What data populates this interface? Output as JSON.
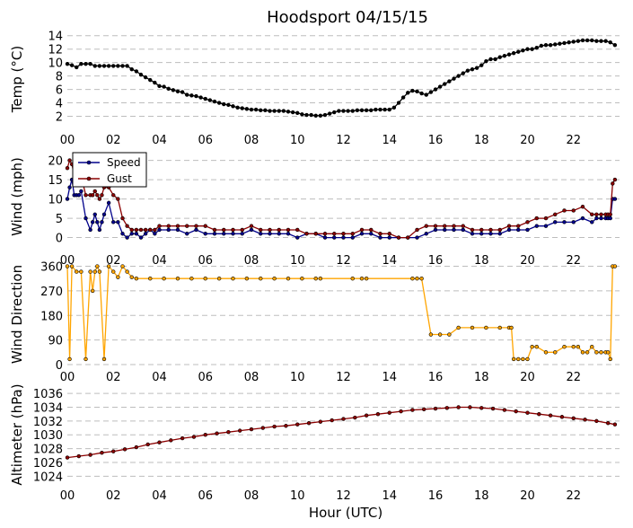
{
  "chart_data": [
    {
      "type": "line",
      "panel": "temp",
      "title": "Hoodsport 04/15/15",
      "ylabel": "Temp (°C)",
      "ylim": [
        1,
        14.5
      ],
      "yticks": [
        "2",
        "4",
        "6",
        "8",
        "10",
        "12",
        "14"
      ],
      "xticks": [
        "00",
        "02",
        "04",
        "06",
        "08",
        "10",
        "12",
        "14",
        "16",
        "18",
        "20",
        "22"
      ],
      "grid": true,
      "series": [
        {
          "color": "#000000",
          "x": [
            0,
            0.2,
            0.4,
            0.6,
            0.8,
            1,
            1.2,
            1.4,
            1.6,
            1.8,
            2,
            2.2,
            2.4,
            2.6,
            2.8,
            3,
            3.2,
            3.4,
            3.6,
            3.8,
            4,
            4.2,
            4.4,
            4.6,
            4.8,
            5,
            5.2,
            5.4,
            5.6,
            5.8,
            6,
            6.2,
            6.4,
            6.6,
            6.8,
            7,
            7.2,
            7.4,
            7.6,
            7.8,
            8,
            8.2,
            8.4,
            8.6,
            8.8,
            9,
            9.2,
            9.4,
            9.6,
            9.8,
            10,
            10.2,
            10.4,
            10.6,
            10.8,
            11,
            11.2,
            11.4,
            11.6,
            11.8,
            12,
            12.2,
            12.4,
            12.6,
            12.8,
            13,
            13.2,
            13.4,
            13.6,
            13.8,
            14,
            14.2,
            14.4,
            14.6,
            14.8,
            15,
            15.2,
            15.4,
            15.6,
            15.8,
            16,
            16.2,
            16.4,
            16.6,
            16.8,
            17,
            17.2,
            17.4,
            17.6,
            17.8,
            18,
            18.2,
            18.4,
            18.6,
            18.8,
            19,
            19.2,
            19.4,
            19.6,
            19.8,
            20,
            20.2,
            20.4,
            20.6,
            20.8,
            21,
            21.2,
            21.4,
            21.6,
            21.8,
            22,
            22.2,
            22.4,
            22.6,
            22.8,
            23,
            23.2,
            23.4,
            23.6,
            23.8
          ],
          "y": [
            9.8,
            9.6,
            9.3,
            9.8,
            9.8,
            9.8,
            9.5,
            9.5,
            9.5,
            9.5,
            9.5,
            9.5,
            9.5,
            9.5,
            9.0,
            8.7,
            8.2,
            7.8,
            7.4,
            7.0,
            6.5,
            6.4,
            6.1,
            5.9,
            5.7,
            5.6,
            5.2,
            5.1,
            5.0,
            4.8,
            4.6,
            4.4,
            4.2,
            4.0,
            3.8,
            3.7,
            3.5,
            3.3,
            3.2,
            3.1,
            3.0,
            3.0,
            2.9,
            2.9,
            2.8,
            2.8,
            2.8,
            2.8,
            2.7,
            2.6,
            2.5,
            2.3,
            2.2,
            2.2,
            2.1,
            2.1,
            2.2,
            2.4,
            2.6,
            2.8,
            2.8,
            2.8,
            2.8,
            2.9,
            2.9,
            2.9,
            2.9,
            3.0,
            3.0,
            3.0,
            3.0,
            3.3,
            4.0,
            4.8,
            5.5,
            5.8,
            5.7,
            5.4,
            5.2,
            5.6,
            6.0,
            6.4,
            6.8,
            7.2,
            7.6,
            8.0,
            8.4,
            8.8,
            9.0,
            9.2,
            9.6,
            10.2,
            10.5,
            10.5,
            10.8,
            11.0,
            11.2,
            11.4,
            11.6,
            11.8,
            12.0,
            12.0,
            12.2,
            12.5,
            12.6,
            12.6,
            12.7,
            12.8,
            12.9,
            13.0,
            13.1,
            13.2,
            13.3,
            13.3,
            13.3,
            13.2,
            13.2,
            13.2,
            13.0,
            12.6
          ]
        }
      ]
    },
    {
      "type": "line",
      "panel": "wind",
      "ylabel": "Wind (mph)",
      "ylim": [
        -1.5,
        22
      ],
      "yticks": [
        "0",
        "5",
        "10",
        "15",
        "20"
      ],
      "xticks": [
        "00",
        "02",
        "04",
        "06",
        "08",
        "10",
        "12",
        "14",
        "16",
        "18",
        "20",
        "22"
      ],
      "grid": true,
      "legend_position": "top-left",
      "series": [
        {
          "name": "Speed",
          "color": "#00008b",
          "x": [
            0,
            0.1,
            0.2,
            0.3,
            0.4,
            0.5,
            0.6,
            0.8,
            1.0,
            1.1,
            1.2,
            1.3,
            1.4,
            1.5,
            1.6,
            1.8,
            2.0,
            2.2,
            2.4,
            2.6,
            2.8,
            3.0,
            3.2,
            3.4,
            3.6,
            3.8,
            4.0,
            4.4,
            4.8,
            5.2,
            5.6,
            6.0,
            6.4,
            6.8,
            7.2,
            7.6,
            8.0,
            8.4,
            8.8,
            9.2,
            9.6,
            10.0,
            10.4,
            10.8,
            11.2,
            11.6,
            12.0,
            12.4,
            12.8,
            13.2,
            13.6,
            14.0,
            14.4,
            14.8,
            15.2,
            15.6,
            16.0,
            16.4,
            16.8,
            17.2,
            17.6,
            18.0,
            18.4,
            18.8,
            19.2,
            19.6,
            20.0,
            20.4,
            20.8,
            21.2,
            21.6,
            22.0,
            22.4,
            22.8,
            23.0,
            23.2,
            23.4,
            23.5,
            23.6,
            23.7,
            23.8
          ],
          "y": [
            10,
            13,
            15,
            11,
            11,
            11,
            12,
            5,
            2,
            4,
            6,
            4,
            2,
            4,
            6,
            9,
            4,
            4,
            1,
            0,
            1,
            1,
            0,
            1,
            2,
            1,
            2,
            2,
            2,
            1,
            2,
            1,
            1,
            1,
            1,
            1,
            2,
            1,
            1,
            1,
            1,
            0,
            1,
            1,
            0,
            0,
            0,
            0,
            1,
            1,
            0,
            0,
            0,
            0,
            0,
            1,
            2,
            2,
            2,
            2,
            1,
            1,
            1,
            1,
            2,
            2,
            2,
            3,
            3,
            4,
            4,
            4,
            5,
            4,
            5,
            5,
            5,
            5,
            5,
            10,
            10
          ]
        },
        {
          "name": "Gust",
          "color": "#8b0000",
          "x": [
            0,
            0.1,
            0.2,
            0.3,
            0.4,
            0.5,
            0.6,
            0.8,
            1.0,
            1.1,
            1.2,
            1.3,
            1.4,
            1.5,
            1.6,
            1.8,
            2.0,
            2.2,
            2.4,
            2.6,
            2.8,
            3.0,
            3.2,
            3.4,
            3.6,
            3.8,
            4.0,
            4.4,
            4.8,
            5.2,
            5.6,
            6.0,
            6.4,
            6.8,
            7.2,
            7.6,
            8.0,
            8.4,
            8.8,
            9.2,
            9.6,
            10.0,
            10.4,
            10.8,
            11.2,
            11.6,
            12.0,
            12.4,
            12.8,
            13.2,
            13.6,
            14.0,
            14.4,
            14.8,
            15.2,
            15.6,
            16.0,
            16.4,
            16.8,
            17.2,
            17.6,
            18.0,
            18.4,
            18.8,
            19.2,
            19.6,
            20.0,
            20.4,
            20.8,
            21.2,
            21.6,
            22.0,
            22.4,
            22.8,
            23.0,
            23.2,
            23.4,
            23.5,
            23.6,
            23.7,
            23.8
          ],
          "y": [
            18,
            20,
            19,
            16,
            15,
            15,
            16,
            11,
            11,
            11,
            12,
            11,
            10,
            11,
            13,
            13,
            11,
            10,
            5,
            3,
            2,
            2,
            2,
            2,
            2,
            2,
            3,
            3,
            3,
            3,
            3,
            3,
            2,
            2,
            2,
            2,
            3,
            2,
            2,
            2,
            2,
            2,
            1,
            1,
            1,
            1,
            1,
            1,
            2,
            2,
            1,
            1,
            0,
            0,
            2,
            3,
            3,
            3,
            3,
            3,
            2,
            2,
            2,
            2,
            3,
            3,
            4,
            5,
            5,
            6,
            7,
            7,
            8,
            6,
            6,
            6,
            6,
            6,
            6,
            14,
            15
          ]
        }
      ]
    },
    {
      "type": "line",
      "panel": "direction",
      "ylabel": "Wind Direction",
      "ylim": [
        0,
        365
      ],
      "yticks": [
        "0",
        "90",
        "180",
        "270",
        "360"
      ],
      "xticks": [
        "00",
        "02",
        "04",
        "06",
        "08",
        "10",
        "12",
        "14",
        "16",
        "18",
        "20",
        "22"
      ],
      "grid": true,
      "series": [
        {
          "color": "#ffa500",
          "x": [
            0,
            0.1,
            0.2,
            0.4,
            0.6,
            0.8,
            1.0,
            1.1,
            1.2,
            1.3,
            1.4,
            1.6,
            1.8,
            2.0,
            2.2,
            2.4,
            2.6,
            2.8,
            3.0,
            3.6,
            4.2,
            4.8,
            5.4,
            6.0,
            6.6,
            7.2,
            7.8,
            8.4,
            9.0,
            9.6,
            10.2,
            10.8,
            11.0,
            12.4,
            12.8,
            13.0,
            15.0,
            15.2,
            15.4,
            15.8,
            16.2,
            16.6,
            17.0,
            17.6,
            18.2,
            18.8,
            19.2,
            19.3,
            19.4,
            19.6,
            19.8,
            20.0,
            20.2,
            20.4,
            20.8,
            21.2,
            21.6,
            22.0,
            22.2,
            22.4,
            22.6,
            22.8,
            23.0,
            23.2,
            23.4,
            23.5,
            23.6,
            23.7,
            23.8
          ],
          "y": [
            360,
            20,
            360,
            340,
            340,
            20,
            340,
            270,
            340,
            360,
            340,
            20,
            360,
            340,
            320,
            360,
            340,
            320,
            315,
            315,
            315,
            315,
            315,
            315,
            315,
            315,
            315,
            315,
            315,
            315,
            315,
            315,
            315,
            315,
            315,
            315,
            315,
            315,
            315,
            110,
            110,
            110,
            135,
            135,
            135,
            135,
            135,
            135,
            20,
            20,
            20,
            20,
            65,
            65,
            45,
            45,
            65,
            65,
            65,
            45,
            45,
            65,
            45,
            45,
            45,
            45,
            20,
            360,
            360
          ]
        }
      ]
    },
    {
      "type": "line",
      "panel": "altimeter",
      "ylabel": "Altimeter (hPa)",
      "xlabel": "Hour (UTC)",
      "ylim": [
        1023,
        1036.8
      ],
      "yticks": [
        "1024",
        "1026",
        "1028",
        "1030",
        "1032",
        "1034",
        "1036"
      ],
      "xticks": [
        "00",
        "02",
        "04",
        "06",
        "08",
        "10",
        "12",
        "14",
        "16",
        "18",
        "20",
        "22"
      ],
      "grid": true,
      "series": [
        {
          "color": "#8b0000",
          "x": [
            0,
            0.5,
            1,
            1.5,
            2,
            2.5,
            3,
            3.5,
            4,
            4.5,
            5,
            5.5,
            6,
            6.5,
            7,
            7.5,
            8,
            8.5,
            9,
            9.5,
            10,
            10.5,
            11,
            11.5,
            12,
            12.5,
            13,
            13.5,
            14,
            14.5,
            15,
            15.5,
            16,
            16.5,
            17,
            17.5,
            18,
            18.5,
            19,
            19.5,
            20,
            20.5,
            21,
            21.5,
            22,
            22.5,
            23,
            23.5,
            23.8
          ],
          "y": [
            1026.7,
            1026.9,
            1027.1,
            1027.4,
            1027.6,
            1027.9,
            1028.2,
            1028.6,
            1028.9,
            1029.2,
            1029.5,
            1029.7,
            1030.0,
            1030.2,
            1030.4,
            1030.6,
            1030.8,
            1031.0,
            1031.2,
            1031.3,
            1031.5,
            1031.7,
            1031.9,
            1032.1,
            1032.3,
            1032.5,
            1032.8,
            1033.0,
            1033.2,
            1033.4,
            1033.6,
            1033.7,
            1033.8,
            1033.9,
            1034.0,
            1034.0,
            1033.9,
            1033.8,
            1033.6,
            1033.4,
            1033.2,
            1033.0,
            1032.8,
            1032.6,
            1032.4,
            1032.2,
            1032.0,
            1031.7,
            1031.5
          ]
        }
      ]
    }
  ]
}
